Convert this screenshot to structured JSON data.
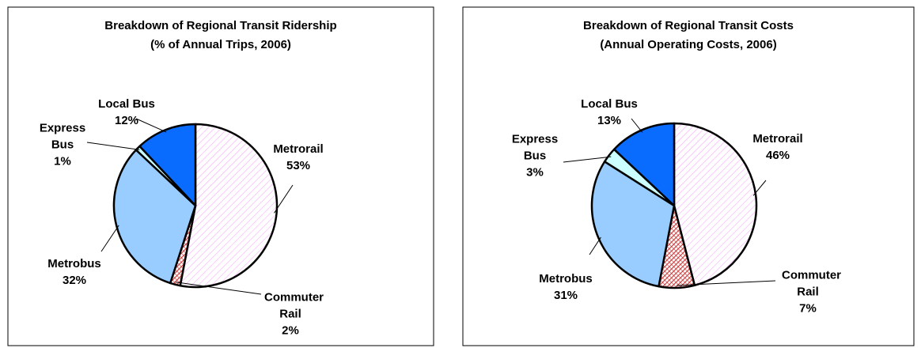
{
  "chart_data": [
    {
      "type": "pie",
      "title": "Breakdown of Regional Transit Ridership",
      "subtitle": "(% of Annual Trips, 2006)",
      "categories": [
        "Metrorail",
        "Commuter Rail",
        "Metrobus",
        "Express Bus",
        "Local Bus"
      ],
      "values": [
        53,
        2,
        32,
        1,
        12
      ],
      "value_labels": [
        "53%",
        "2%",
        "32%",
        "1%",
        "12%"
      ],
      "colors": [
        "#ff99ff",
        "#cc3333",
        "#99ccff",
        "#ccffff",
        "#0a6cff"
      ],
      "hatch": [
        "diagonal",
        "dense",
        "solid",
        "solid",
        "solid"
      ]
    },
    {
      "type": "pie",
      "title": "Breakdown of Regional Transit Costs",
      "subtitle": "(Annual Operating Costs, 2006)",
      "categories": [
        "Metrorail",
        "Commuter Rail",
        "Metrobus",
        "Express Bus",
        "Local Bus"
      ],
      "values": [
        46,
        7,
        31,
        3,
        13
      ],
      "value_labels": [
        "46%",
        "7%",
        "31%",
        "3%",
        "13%"
      ],
      "colors": [
        "#ff99ff",
        "#cc3333",
        "#99ccff",
        "#ccffff",
        "#0a6cff"
      ],
      "hatch": [
        "diagonal",
        "dense",
        "solid",
        "solid",
        "solid"
      ]
    }
  ]
}
